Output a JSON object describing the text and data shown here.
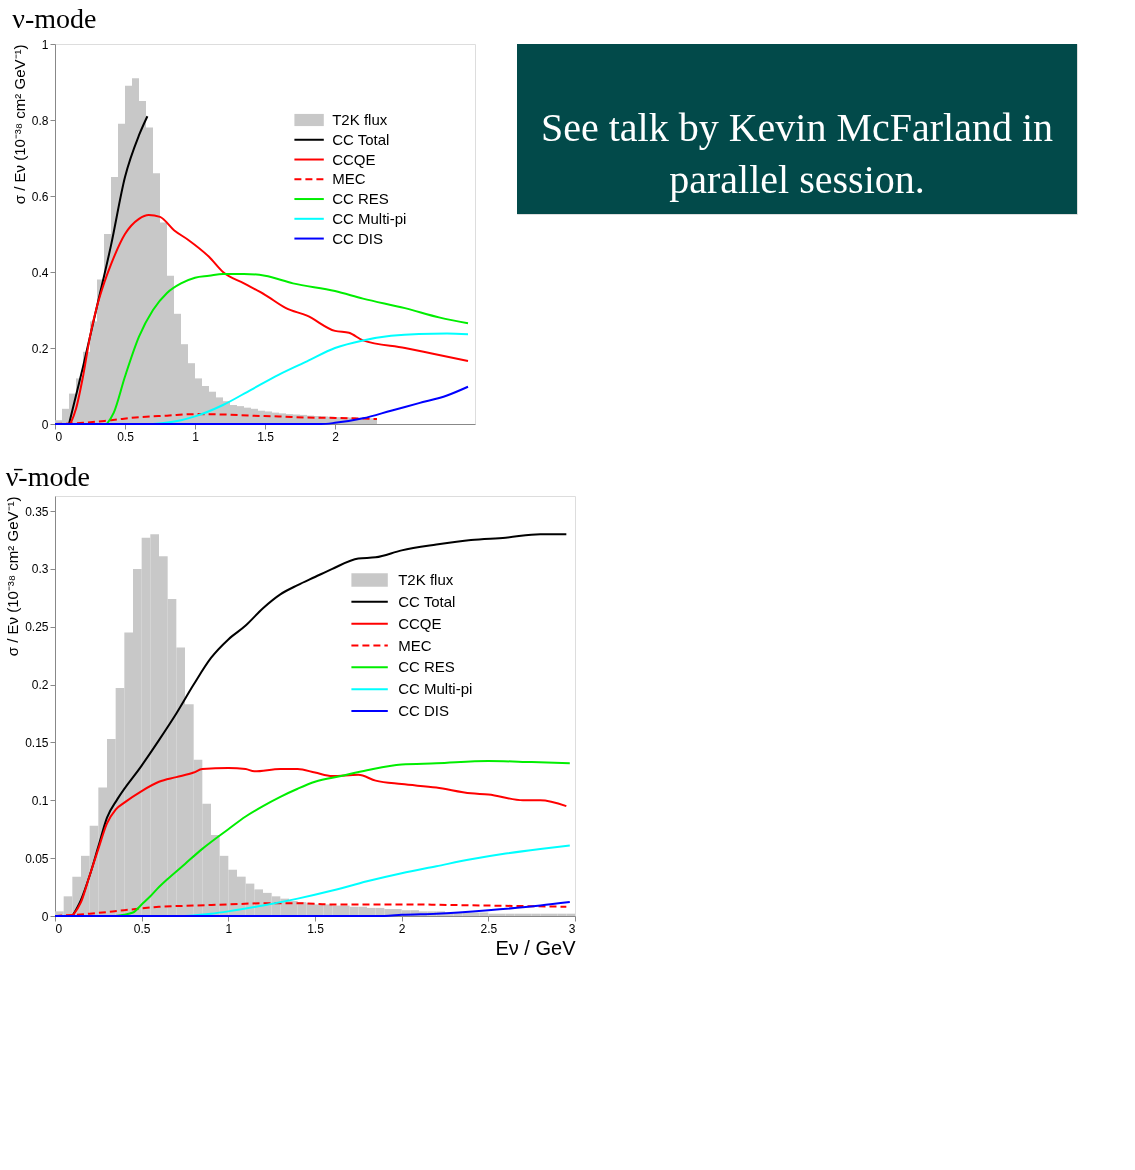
{
  "chart_data": [
    {
      "type": "line",
      "title": "ν-mode",
      "ylabel": "σ / Eν (10⁻³⁸ cm² GeV⁻¹)",
      "xlim": [
        0,
        3
      ],
      "xticks": [
        0,
        0.5,
        1,
        1.5,
        2
      ],
      "ylim": [
        0,
        1
      ],
      "yticks": [
        0,
        0.2,
        0.4,
        0.6,
        0.8,
        1
      ],
      "legend": "top right",
      "grid": false,
      "annotations": [
        "See talk by Kevin McFarland in parallel session."
      ],
      "series": [
        {
          "name": "T2K flux",
          "type": "histogram",
          "color": "#c8c8c8",
          "bins": [
            0,
            0.05,
            0.1,
            0.15,
            0.2,
            0.25,
            0.3,
            0.35,
            0.4,
            0.45,
            0.5,
            0.55,
            0.6,
            0.65,
            0.7,
            0.75,
            0.8,
            0.85,
            0.9,
            0.95,
            1,
            1.05,
            1.1,
            1.15,
            1.2,
            1.25,
            1.3,
            1.35,
            1.4,
            1.45,
            1.5,
            1.55,
            1.6,
            1.65,
            1.7,
            1.75,
            1.8,
            1.85,
            1.9,
            1.95,
            2,
            2.05,
            2.1,
            2.15,
            2.2,
            2.25,
            2.3
          ],
          "values": [
            0.01,
            0.04,
            0.08,
            0.12,
            0.19,
            0.27,
            0.38,
            0.5,
            0.65,
            0.79,
            0.89,
            0.91,
            0.85,
            0.78,
            0.66,
            0.53,
            0.39,
            0.29,
            0.21,
            0.16,
            0.12,
            0.1,
            0.085,
            0.07,
            0.06,
            0.05,
            0.047,
            0.043,
            0.04,
            0.035,
            0.033,
            0.03,
            0.028,
            0.026,
            0.025,
            0.024,
            0.022,
            0.021,
            0.02,
            0.019,
            0.018,
            0.018,
            0.017,
            0.016,
            0.016,
            0.015
          ]
        },
        {
          "name": "CC Total",
          "type": "line",
          "color": "#000000",
          "x": [
            0.1,
            0.2,
            0.3,
            0.4,
            0.5,
            0.6,
            0.66
          ],
          "values": [
            0,
            0.15,
            0.31,
            0.47,
            0.65,
            0.76,
            0.81
          ]
        },
        {
          "name": "CCQE",
          "type": "line",
          "color": "#ff0000",
          "x": [
            0.11,
            0.15,
            0.2,
            0.25,
            0.3,
            0.35,
            0.4,
            0.5,
            0.6,
            0.67,
            0.75,
            0.85,
            0.95,
            1.1,
            1.2,
            1.35,
            1.5,
            1.65,
            1.8,
            2.0,
            2.1,
            2.2,
            2.5,
            2.7,
            2.95
          ],
          "values": [
            0,
            0.04,
            0.125,
            0.23,
            0.31,
            0.37,
            0.42,
            0.5,
            0.54,
            0.55,
            0.545,
            0.51,
            0.485,
            0.44,
            0.4,
            0.37,
            0.34,
            0.305,
            0.285,
            0.245,
            0.24,
            0.22,
            0.2,
            0.185,
            0.166
          ]
        },
        {
          "name": "MEC",
          "type": "line",
          "line_style": "dashed",
          "color": "#ff0000",
          "x": [
            0,
            0.2,
            0.4,
            0.6,
            0.8,
            1.0,
            1.2,
            1.4,
            1.6,
            1.8,
            2.0,
            2.3
          ],
          "values": [
            0,
            0.003,
            0.01,
            0.018,
            0.022,
            0.026,
            0.025,
            0.022,
            0.02,
            0.017,
            0.016,
            0.013
          ]
        },
        {
          "name": "CC RES",
          "type": "line",
          "color": "#00ee00",
          "x": [
            0.37,
            0.42,
            0.5,
            0.6,
            0.7,
            0.8,
            0.9,
            1.0,
            1.1,
            1.2,
            1.35,
            1.5,
            1.7,
            2.0,
            2.2,
            2.5,
            2.75,
            2.95
          ],
          "values": [
            0,
            0.03,
            0.125,
            0.23,
            0.3,
            0.345,
            0.37,
            0.385,
            0.39,
            0.395,
            0.395,
            0.39,
            0.37,
            0.35,
            0.33,
            0.305,
            0.28,
            0.265
          ]
        },
        {
          "name": "CC Multi-pi",
          "type": "line",
          "color": "#00ffff",
          "x": [
            0.7,
            0.9,
            1.0,
            1.2,
            1.4,
            1.6,
            1.8,
            2.0,
            2.2,
            2.4,
            2.6,
            2.8,
            2.95
          ],
          "values": [
            0,
            0.01,
            0.02,
            0.05,
            0.09,
            0.13,
            0.165,
            0.2,
            0.22,
            0.232,
            0.237,
            0.238,
            0.236
          ]
        },
        {
          "name": "CC DIS",
          "type": "line",
          "color": "#0000ff",
          "x": [
            0,
            1.9,
            2.0,
            2.2,
            2.4,
            2.6,
            2.8,
            2.95
          ],
          "values": [
            0,
            0,
            0.003,
            0.015,
            0.035,
            0.055,
            0.075,
            0.098
          ]
        }
      ]
    },
    {
      "type": "line",
      "title": "ν̄-mode",
      "xlabel": "Eν / GeV",
      "ylabel": "σ / Eν (10⁻³⁸ cm² GeV⁻¹)",
      "xlim": [
        0,
        3
      ],
      "xticks": [
        0,
        0.5,
        1,
        1.5,
        2,
        2.5,
        3
      ],
      "ylim": [
        0,
        0.363
      ],
      "yticks": [
        0,
        0.05,
        0.1,
        0.15,
        0.2,
        0.25,
        0.3,
        0.35
      ],
      "legend": "top right",
      "grid": false,
      "series": [
        {
          "name": "T2K flux",
          "type": "histogram",
          "color": "#c8c8c8",
          "bins": [
            0,
            0.05,
            0.1,
            0.15,
            0.2,
            0.25,
            0.3,
            0.35,
            0.4,
            0.45,
            0.5,
            0.55,
            0.6,
            0.65,
            0.7,
            0.75,
            0.8,
            0.85,
            0.9,
            0.95,
            1,
            1.05,
            1.1,
            1.15,
            1.2,
            1.25,
            1.3,
            1.35,
            1.4,
            1.45,
            1.5,
            1.55,
            1.6,
            1.65,
            1.7,
            1.75,
            1.8,
            1.85,
            1.9,
            1.95,
            2,
            2.05,
            2.1,
            2.15,
            2.2,
            2.25,
            2.3,
            2.35,
            2.4,
            2.45,
            2.5,
            2.55,
            2.6,
            2.65,
            2.7,
            2.75,
            2.8,
            2.85,
            2.9,
            2.95,
            3
          ],
          "values": [
            0.004,
            0.017,
            0.034,
            0.052,
            0.078,
            0.111,
            0.153,
            0.197,
            0.245,
            0.3,
            0.327,
            0.33,
            0.311,
            0.274,
            0.232,
            0.183,
            0.135,
            0.097,
            0.07,
            0.052,
            0.04,
            0.034,
            0.028,
            0.023,
            0.02,
            0.017,
            0.015,
            0.013,
            0.012,
            0.011,
            0.01,
            0.01,
            0.009,
            0.009,
            0.008,
            0.008,
            0.007,
            0.007,
            0.006,
            0.006,
            0.005,
            0.005,
            0.004,
            0.004,
            0.004,
            0.003,
            0.003,
            0.003,
            0.003,
            0.003,
            0.002,
            0.002,
            0.002,
            0.002,
            0.002,
            0.002,
            0.002,
            0.002,
            0.002,
            0.002
          ]
        },
        {
          "name": "CC Total",
          "type": "line",
          "color": "#000000",
          "x": [
            0.1,
            0.15,
            0.2,
            0.25,
            0.3,
            0.36,
            0.5,
            0.6,
            0.7,
            0.8,
            0.9,
            1.0,
            1.1,
            1.2,
            1.3,
            1.4,
            1.5,
            1.6,
            1.75,
            1.85,
            2.0,
            2.2,
            2.4,
            2.6,
            2.8,
            2.95
          ],
          "values": [
            0,
            0.014,
            0.035,
            0.06,
            0.085,
            0.101,
            0.13,
            0.152,
            0.175,
            0.2,
            0.223,
            0.239,
            0.251,
            0.266,
            0.278,
            0.286,
            0.293,
            0.3,
            0.309,
            0.31,
            0.316,
            0.321,
            0.325,
            0.327,
            0.33,
            0.33
          ]
        },
        {
          "name": "CCQE",
          "type": "line",
          "color": "#ff0000",
          "x": [
            0.1,
            0.15,
            0.2,
            0.25,
            0.3,
            0.35,
            0.4,
            0.5,
            0.6,
            0.7,
            0.8,
            0.85,
            1.0,
            1.1,
            1.15,
            1.3,
            1.4,
            1.5,
            1.6,
            1.75,
            1.85,
            2.0,
            2.2,
            2.4,
            2.5,
            2.7,
            2.8,
            2.95
          ],
          "values": [
            0,
            0.012,
            0.035,
            0.058,
            0.08,
            0.092,
            0.098,
            0.108,
            0.116,
            0.12,
            0.124,
            0.127,
            0.128,
            0.127,
            0.125,
            0.127,
            0.127,
            0.124,
            0.121,
            0.122,
            0.117,
            0.114,
            0.111,
            0.106,
            0.105,
            0.1,
            0.1,
            0.095
          ]
        },
        {
          "name": "MEC",
          "type": "line",
          "line_style": "dashed",
          "color": "#ff0000",
          "x": [
            0,
            0.2,
            0.4,
            0.6,
            0.8,
            1.0,
            1.2,
            1.4,
            1.6,
            2.0,
            2.5,
            2.95
          ],
          "values": [
            0,
            0.002,
            0.005,
            0.008,
            0.009,
            0.01,
            0.011,
            0.011,
            0.01,
            0.01,
            0.009,
            0.008
          ]
        },
        {
          "name": "CC RES",
          "type": "line",
          "color": "#00ee00",
          "x": [
            0.35,
            0.45,
            0.5,
            0.55,
            0.6,
            0.65,
            0.75,
            0.85,
            1.0,
            1.1,
            1.2,
            1.3,
            1.4,
            1.5,
            1.65,
            1.8,
            2.0,
            2.2,
            2.5,
            2.75,
            2.97
          ],
          "values": [
            0,
            0.003,
            0.01,
            0.017,
            0.025,
            0.032,
            0.045,
            0.058,
            0.075,
            0.086,
            0.095,
            0.103,
            0.11,
            0.116,
            0.121,
            0.126,
            0.131,
            0.132,
            0.134,
            0.133,
            0.132
          ]
        },
        {
          "name": "CC Multi-pi",
          "type": "line",
          "color": "#00ffff",
          "x": [
            0.75,
            0.9,
            1.0,
            1.2,
            1.4,
            1.6,
            1.8,
            2.0,
            2.2,
            2.4,
            2.6,
            2.8,
            2.97
          ],
          "values": [
            0,
            0.002,
            0.004,
            0.009,
            0.015,
            0.022,
            0.03,
            0.037,
            0.043,
            0.049,
            0.054,
            0.058,
            0.061
          ]
        },
        {
          "name": "CC DIS",
          "type": "line",
          "color": "#0000ff",
          "x": [
            0,
            1.9,
            2.0,
            2.2,
            2.5,
            2.8,
            2.97
          ],
          "values": [
            0,
            0,
            0.001,
            0.002,
            0.005,
            0.009,
            0.012
          ]
        }
      ]
    }
  ]
}
